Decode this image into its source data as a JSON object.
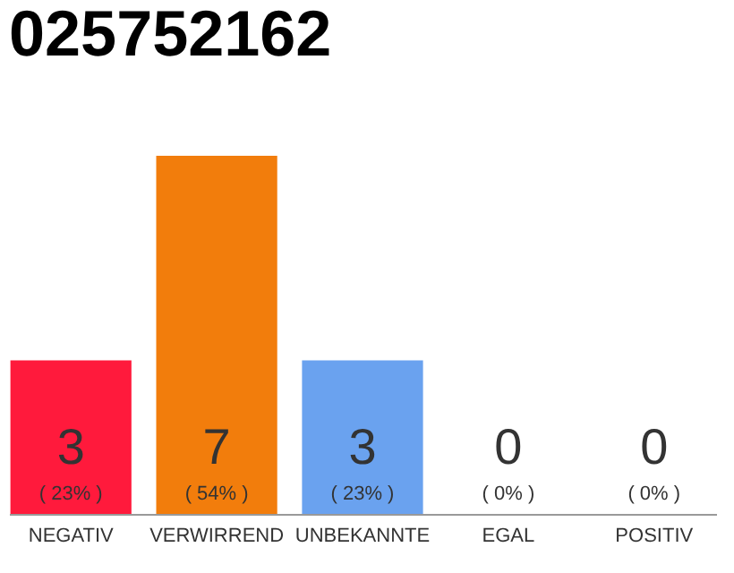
{
  "chart_data": {
    "type": "bar",
    "title": "025752162",
    "categories": [
      "NEGATIV",
      "VERWIRREND",
      "UNBEKANNTE",
      "EGAL",
      "POSITIV"
    ],
    "values": [
      3,
      7,
      3,
      0,
      0
    ],
    "value_labels": [
      "3",
      "7",
      "3",
      "0",
      "0"
    ],
    "colors": [
      "#ff1a3c",
      "#f27d0c",
      "#6aa2ef",
      "#cccccc",
      "#cccccc"
    ],
    "annotations": [
      {
        "text": "( 23% )",
        "x": "NEGATIV",
        "y": 0
      },
      {
        "text": "( 54% )",
        "x": "VERWIRREND",
        "y": 0
      },
      {
        "text": "( 23% )",
        "x": "UNBEKANNTE",
        "y": 0
      },
      {
        "text": "( 0% )",
        "x": "EGAL",
        "y": 0
      },
      {
        "text": "( 0% )",
        "x": "POSITIV",
        "y": 0
      }
    ],
    "tick_labels": "x"
  }
}
